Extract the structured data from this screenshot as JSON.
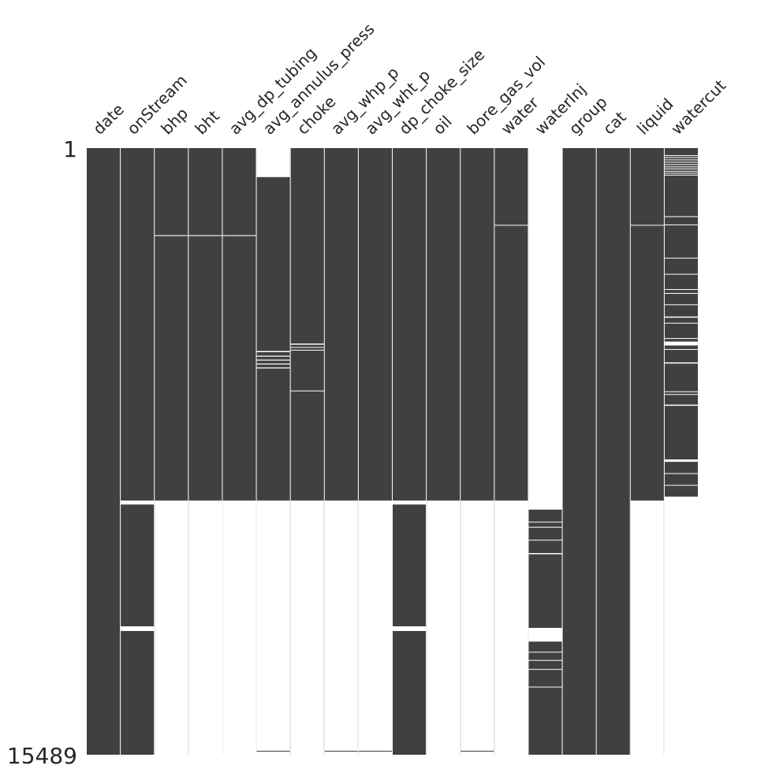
{
  "chart_data": {
    "type": "missingno-matrix",
    "n_rows": 15489,
    "row_labels": {
      "top": "1",
      "bottom": "15489"
    },
    "colors": {
      "filled": "#404040",
      "missing": "#ffffff",
      "text": "#262626"
    },
    "columns": [
      {
        "label": "date",
        "missing": []
      },
      {
        "label": "onStream",
        "missing": [
          [
            8999,
            9100
          ],
          [
            12210,
            12330
          ]
        ]
      },
      {
        "label": "bhp",
        "missing": [
          [
            2223,
            2245
          ],
          [
            9000,
            15489
          ]
        ]
      },
      {
        "label": "bht",
        "missing": [
          [
            2223,
            2245
          ],
          [
            9000,
            15489
          ]
        ]
      },
      {
        "label": "avg_dp_tubing",
        "missing": [
          [
            2223,
            2245
          ],
          [
            9000,
            15489
          ]
        ]
      },
      {
        "label": "avg_annulus_press",
        "missing": [
          [
            0,
            740
          ],
          [
            5180,
            5210
          ],
          [
            5300,
            5325
          ],
          [
            5400,
            5425
          ],
          [
            5500,
            5525
          ],
          [
            5600,
            5625
          ],
          [
            9000,
            15389
          ],
          [
            15410,
            15489
          ]
        ]
      },
      {
        "label": "choke",
        "missing": [
          [
            4990,
            5020
          ],
          [
            5080,
            5100
          ],
          [
            5150,
            5170
          ],
          [
            6190,
            6210
          ],
          [
            9000,
            15489
          ]
        ]
      },
      {
        "label": "avg_whp_p",
        "missing": [
          [
            9000,
            15389
          ],
          [
            15410,
            15489
          ]
        ]
      },
      {
        "label": "avg_wht_p",
        "missing": [
          [
            9000,
            15389
          ],
          [
            15410,
            15489
          ]
        ]
      },
      {
        "label": "dp_choke_size",
        "missing": [
          [
            8999,
            9100
          ],
          [
            12210,
            12330
          ]
        ]
      },
      {
        "label": "oil",
        "missing": [
          [
            9000,
            15489
          ]
        ]
      },
      {
        "label": "bore_gas_vol",
        "missing": [
          [
            9000,
            15389
          ],
          [
            15410,
            15489
          ]
        ]
      },
      {
        "label": "water",
        "missing": [
          [
            1960,
            1980
          ],
          [
            9000,
            15489
          ]
        ]
      },
      {
        "label": "waterInj",
        "missing": [
          [
            0,
            9230
          ],
          [
            9540,
            9560
          ],
          [
            9670,
            9690
          ],
          [
            10000,
            10020
          ],
          [
            10340,
            10370
          ],
          [
            12250,
            12600
          ],
          [
            12860,
            12880
          ],
          [
            13070,
            13090
          ],
          [
            13300,
            13320
          ],
          [
            13750,
            13770
          ]
        ]
      },
      {
        "label": "group",
        "missing": []
      },
      {
        "label": "cat",
        "missing": []
      },
      {
        "label": "liquid",
        "missing": [
          [
            1960,
            1980
          ],
          [
            9000,
            15489
          ]
        ]
      },
      {
        "label": "watercut",
        "missing": [
          [
            180,
            200
          ],
          [
            230,
            250
          ],
          [
            290,
            300
          ],
          [
            350,
            365
          ],
          [
            410,
            430
          ],
          [
            470,
            485
          ],
          [
            520,
            540
          ],
          [
            580,
            600
          ],
          [
            630,
            645
          ],
          [
            680,
            700
          ],
          [
            1740,
            1760
          ],
          [
            1950,
            1970
          ],
          [
            2800,
            2820
          ],
          [
            3210,
            3230
          ],
          [
            3600,
            3620
          ],
          [
            3700,
            3720
          ],
          [
            3990,
            4010
          ],
          [
            4300,
            4330
          ],
          [
            4460,
            4475
          ],
          [
            4850,
            4870
          ],
          [
            4940,
            5040
          ],
          [
            5130,
            5150
          ],
          [
            5470,
            5500
          ],
          [
            6210,
            6230
          ],
          [
            6280,
            6300
          ],
          [
            6550,
            6580
          ],
          [
            7950,
            8010
          ],
          [
            8300,
            8320
          ],
          [
            8600,
            8620
          ],
          [
            8900,
            15489
          ]
        ]
      }
    ]
  }
}
